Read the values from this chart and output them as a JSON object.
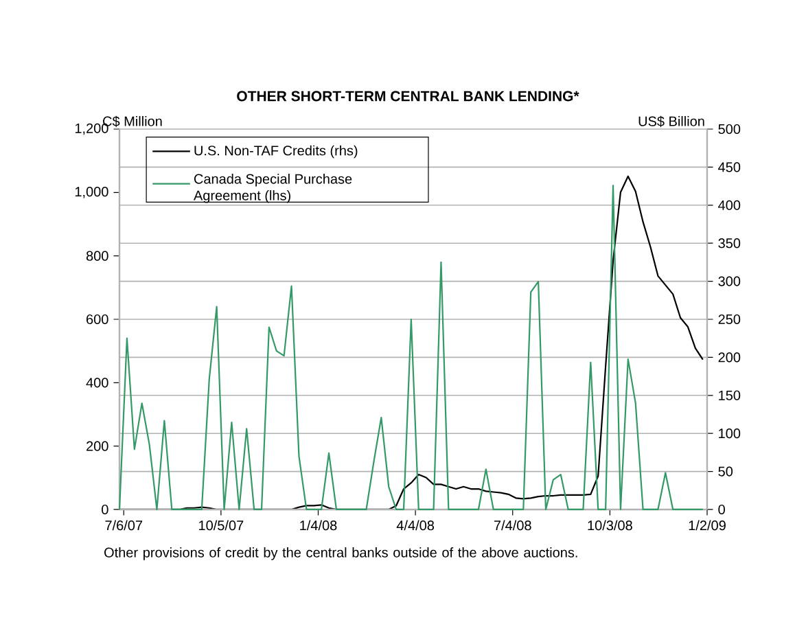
{
  "chart_data": {
    "type": "line",
    "title": "OTHER SHORT-TERM CENTRAL BANK LENDING*",
    "ylabel": "C$ Million",
    "y2label": "US$ Billion",
    "annotations": [
      "Other provisions of credit by the central banks outside of the above auctions."
    ],
    "x": [
      "2007-07-02",
      "2007-07-09",
      "2007-07-16",
      "2007-07-23",
      "2007-07-30",
      "2007-08-06",
      "2007-08-13",
      "2007-08-20",
      "2007-08-27",
      "2007-09-03",
      "2007-09-10",
      "2007-09-17",
      "2007-09-24",
      "2007-10-01",
      "2007-10-08",
      "2007-10-15",
      "2007-10-22",
      "2007-10-29",
      "2007-11-05",
      "2007-11-12",
      "2007-11-19",
      "2007-11-26",
      "2007-12-03",
      "2007-12-10",
      "2007-12-17",
      "2007-12-24",
      "2007-12-31",
      "2008-01-07",
      "2008-01-14",
      "2008-01-21",
      "2008-01-28",
      "2008-02-04",
      "2008-02-11",
      "2008-02-18",
      "2008-02-25",
      "2008-03-03",
      "2008-03-10",
      "2008-03-17",
      "2008-03-24",
      "2008-03-31",
      "2008-04-07",
      "2008-04-14",
      "2008-04-21",
      "2008-04-28",
      "2008-05-05",
      "2008-05-12",
      "2008-05-19",
      "2008-05-26",
      "2008-06-02",
      "2008-06-09",
      "2008-06-16",
      "2008-06-23",
      "2008-06-30",
      "2008-07-07",
      "2008-07-14",
      "2008-07-21",
      "2008-07-28",
      "2008-08-04",
      "2008-08-11",
      "2008-08-18",
      "2008-08-25",
      "2008-09-01",
      "2008-09-08",
      "2008-09-15",
      "2008-09-22",
      "2008-09-29",
      "2008-10-06",
      "2008-10-13",
      "2008-10-20",
      "2008-10-27",
      "2008-11-03",
      "2008-11-10",
      "2008-11-17",
      "2008-11-24",
      "2008-12-01",
      "2008-12-08",
      "2008-12-15",
      "2008-12-22",
      "2008-12-29"
    ],
    "series": [
      {
        "name": "U.S. Non-TAF Credits (rhs)",
        "color": "#000000",
        "axis": "y2",
        "values": [
          0,
          0,
          0,
          0,
          0,
          0,
          0,
          0,
          0,
          2,
          2,
          3,
          2,
          0,
          0,
          0,
          0,
          0,
          0,
          0,
          0,
          0,
          0,
          0,
          3,
          5,
          5,
          6,
          2,
          0,
          0,
          0,
          0,
          0,
          0,
          0,
          0,
          5,
          27,
          35,
          46,
          42,
          33,
          33,
          30,
          27,
          30,
          27,
          27,
          24,
          23,
          22,
          20,
          15,
          14,
          15,
          17,
          18,
          18,
          19,
          19,
          19,
          19,
          20,
          44,
          188,
          327,
          417,
          438,
          418,
          378,
          345,
          307,
          295,
          283,
          252,
          240,
          212,
          197
        ]
      },
      {
        "name": "Canada Special Purchase Agreement (lhs)",
        "color": "#339966",
        "values": [
          0,
          540,
          190,
          335,
          205,
          0,
          280,
          0,
          0,
          0,
          0,
          0,
          410,
          640,
          0,
          275,
          0,
          255,
          0,
          0,
          575,
          500,
          485,
          705,
          168,
          0,
          0,
          0,
          178,
          0,
          0,
          0,
          0,
          0,
          150,
          290,
          72,
          0,
          0,
          600,
          0,
          0,
          0,
          780,
          0,
          0,
          0,
          0,
          0,
          127,
          0,
          0,
          0,
          0,
          0,
          686,
          719,
          0,
          94,
          110,
          0,
          0,
          0,
          464,
          0,
          0,
          1022,
          0,
          474,
          336,
          0,
          0,
          0,
          116,
          0,
          0,
          0,
          0,
          0
        ]
      }
    ],
    "xlim": [
      "2007-07-02",
      "2009-01-02"
    ],
    "xticks": [
      {
        "value": "2007-07-06",
        "label": "7/6/07"
      },
      {
        "value": "2007-10-05",
        "label": "10/5/07"
      },
      {
        "value": "2008-01-04",
        "label": "1/4/08"
      },
      {
        "value": "2008-04-04",
        "label": "4/4/08"
      },
      {
        "value": "2008-07-04",
        "label": "7/4/08"
      },
      {
        "value": "2008-10-03",
        "label": "10/3/08"
      },
      {
        "value": "2009-01-02",
        "label": "1/2/09"
      }
    ],
    "ylim": [
      0,
      1200
    ],
    "yticks": [
      0,
      200,
      400,
      600,
      800,
      {
        "value": 1000,
        "label": "1,000"
      },
      {
        "value": 1200,
        "label": "1,200"
      }
    ],
    "y2lim": [
      0,
      500
    ],
    "y2ticks": [
      0,
      50,
      100,
      150,
      200,
      250,
      300,
      350,
      400,
      450,
      500
    ],
    "grid": "y",
    "legend": "top left",
    "line_style": "solid",
    "marker": "none"
  }
}
